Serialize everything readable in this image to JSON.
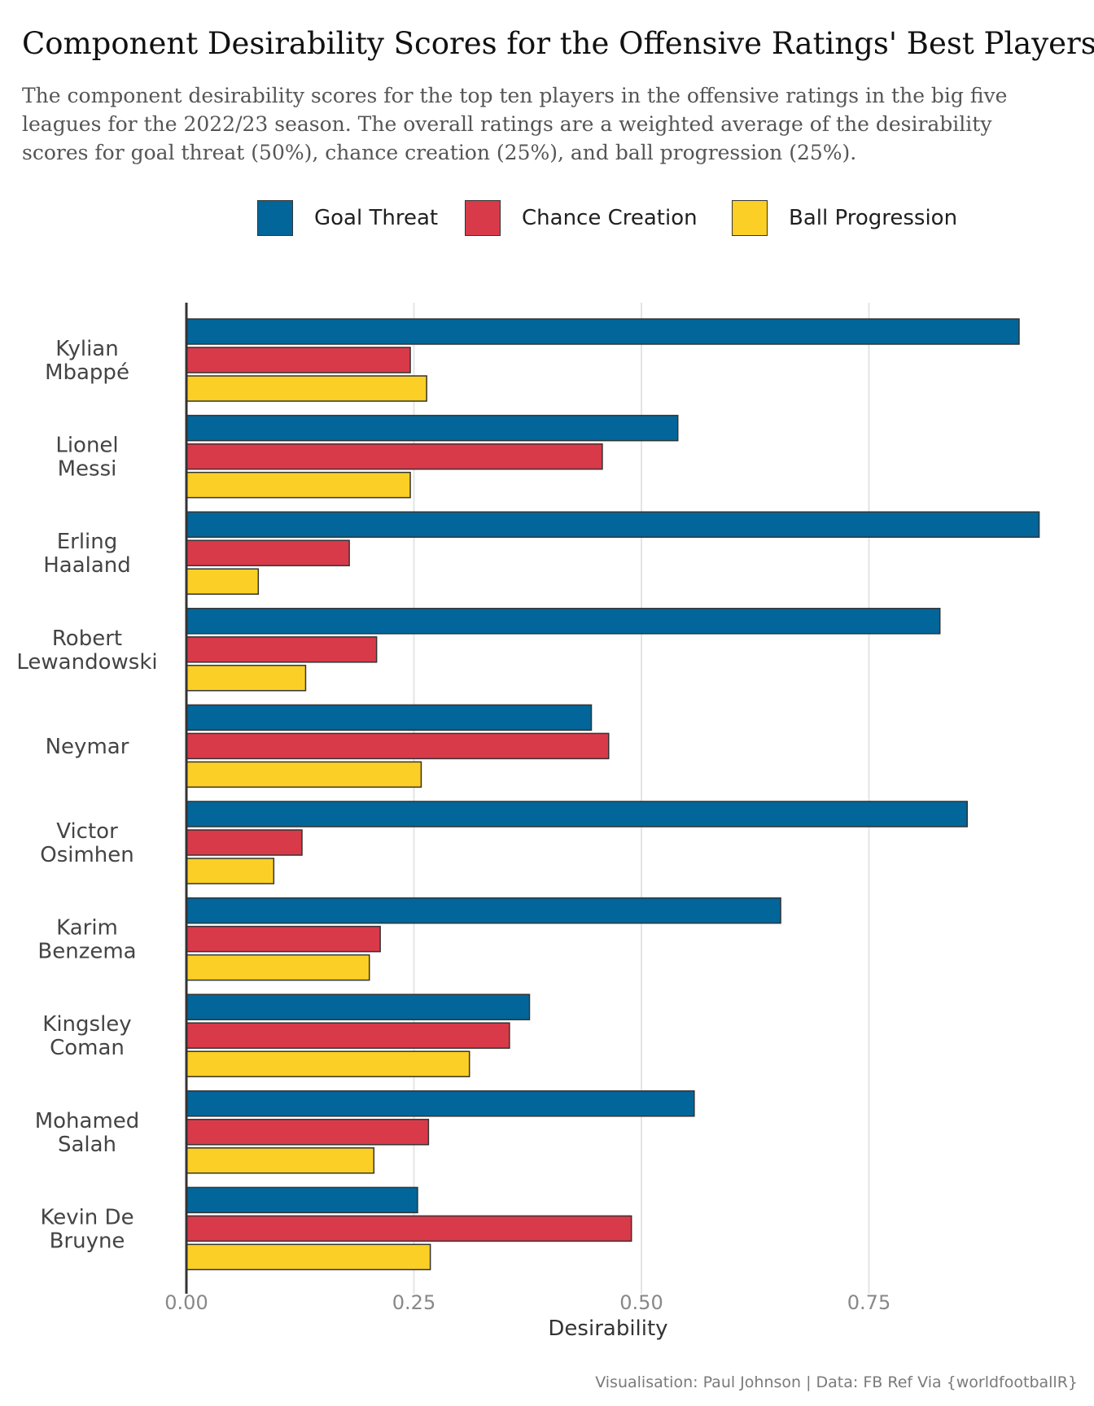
{
  "title": "Component Desirability Scores for the Offensive Ratings' Best Players",
  "subtitle": "The component desirability scores for the top ten players in the offensive ratings in the big five leagues for the 2022/23 season. The overall ratings are a weighted average of the desirability scores for goal threat (50%), chance creation (25%), and ball progression (25%).",
  "caption": "Visualisation: Paul Johnson  |  Data: FB Ref Via {worldfootballR}",
  "legend": [
    {
      "label": "Goal Threat",
      "color": "#03669a"
    },
    {
      "label": "Chance Creation",
      "color": "#d93a4a"
    },
    {
      "label": "Ball Progression",
      "color": "#fccf26"
    }
  ],
  "chart_data": {
    "type": "bar",
    "orientation": "horizontal",
    "categories": [
      [
        "Kylian",
        "Mbappé"
      ],
      [
        "Lionel",
        "Messi"
      ],
      [
        "Erling",
        "Haaland"
      ],
      [
        "Robert",
        "Lewandowski"
      ],
      [
        "Neymar"
      ],
      [
        "Victor",
        "Osimhen"
      ],
      [
        "Karim",
        "Benzema"
      ],
      [
        "Kingsley",
        "Coman"
      ],
      [
        "Mohamed",
        "Salah"
      ],
      [
        "Kevin De",
        "Bruyne"
      ]
    ],
    "series": [
      {
        "name": "Goal Threat",
        "color": "#03669a",
        "values": [
          0.915,
          0.54,
          0.937,
          0.828,
          0.445,
          0.858,
          0.653,
          0.377,
          0.558,
          0.254
        ]
      },
      {
        "name": "Chance Creation",
        "color": "#d93a4a",
        "values": [
          0.246,
          0.457,
          0.179,
          0.209,
          0.464,
          0.127,
          0.213,
          0.355,
          0.266,
          0.489
        ]
      },
      {
        "name": "Ball Progression",
        "color": "#fccf26",
        "values": [
          0.264,
          0.246,
          0.079,
          0.131,
          0.258,
          0.096,
          0.201,
          0.311,
          0.206,
          0.268
        ]
      }
    ],
    "xlabel": "Desirability",
    "ylabel": "",
    "xlim": [
      0,
      0.97
    ],
    "xticks": [
      0,
      0.25,
      0.5,
      0.75
    ],
    "xtick_labels": [
      "0.00",
      "0.25",
      "0.50",
      "0.75"
    ],
    "grid": true,
    "legend_position": "top"
  }
}
